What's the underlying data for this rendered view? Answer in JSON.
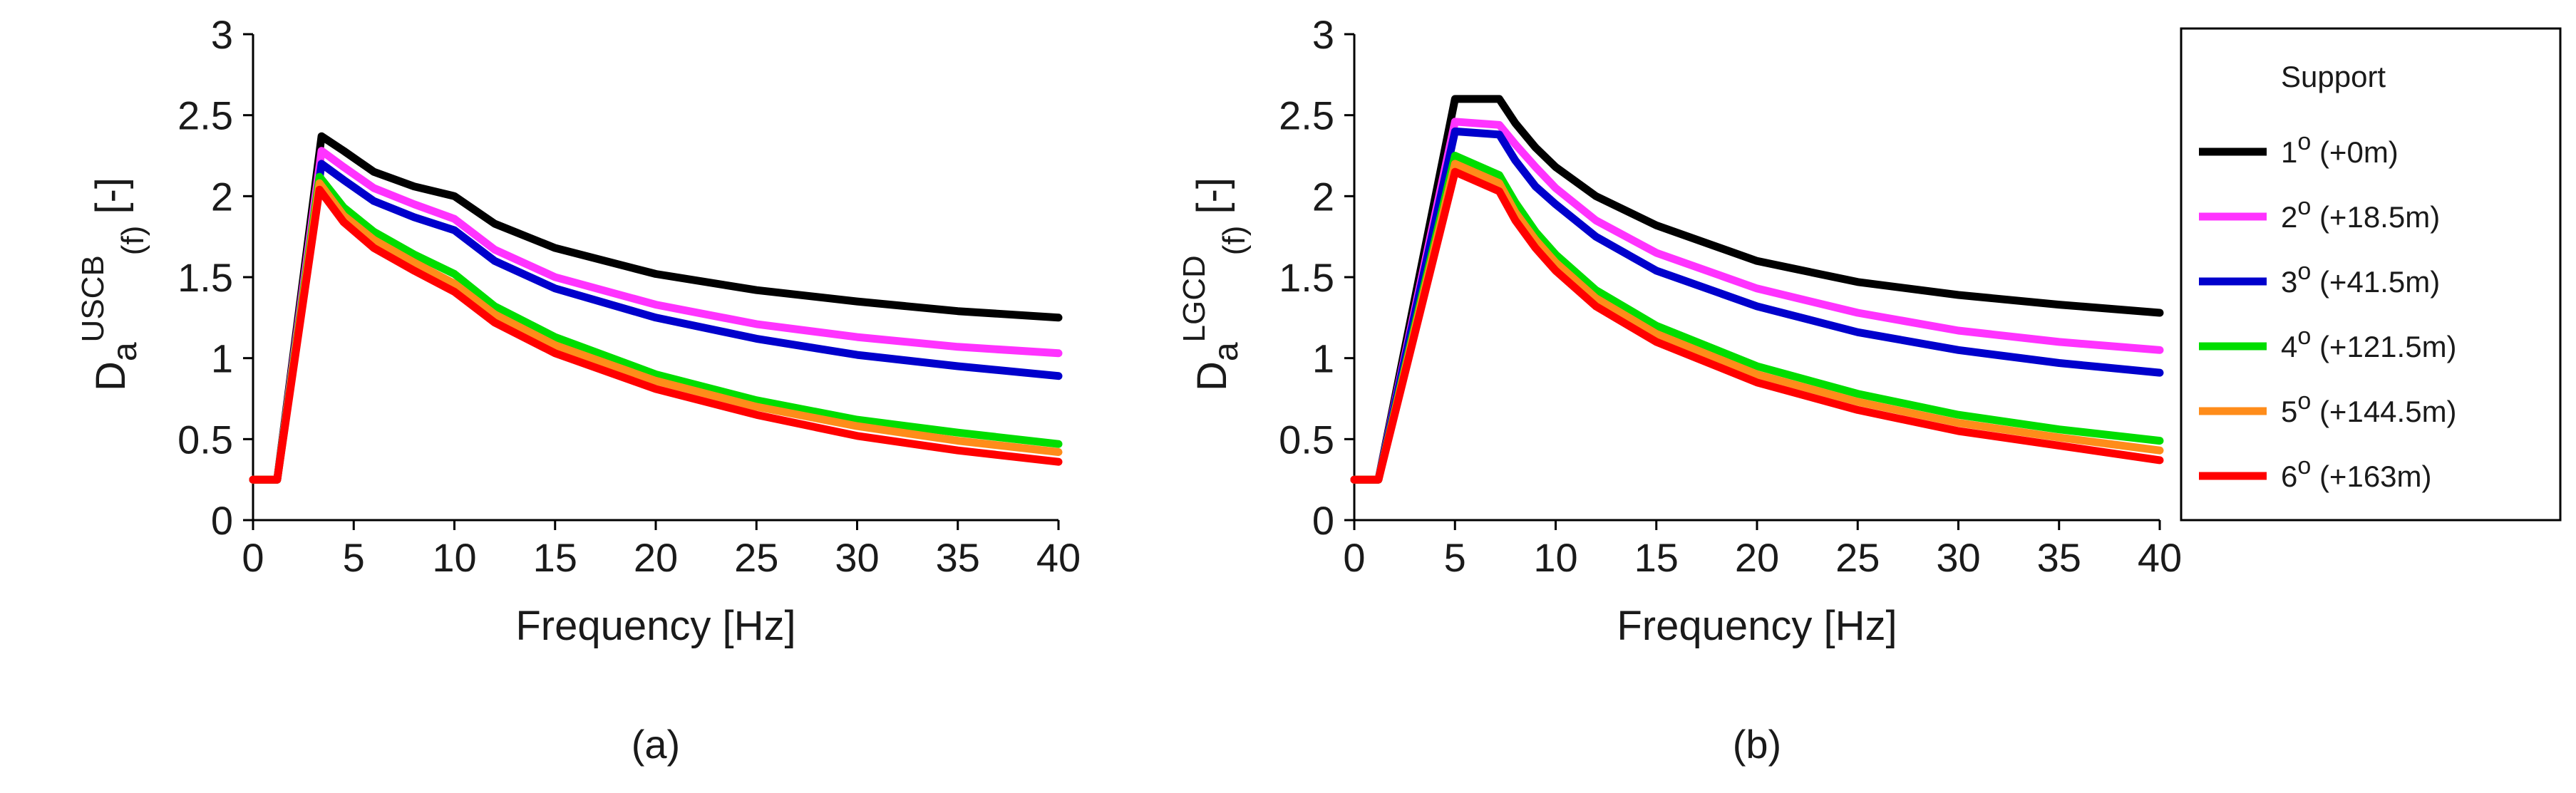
{
  "chart_data": [
    {
      "type": "line",
      "panel_label": "(a)",
      "ylabel_base": "D",
      "ylabel_sub": "a",
      "ylabel_sup": "USCB",
      "ylabel_sub2": "(f)",
      "ylabel_tail": " [-]",
      "xlabel": "Frequency [Hz]",
      "xlim": [
        0,
        40
      ],
      "ylim": [
        0,
        3
      ],
      "xticks": [
        "0",
        "5",
        "10",
        "15",
        "20",
        "25",
        "30",
        "35",
        "40"
      ],
      "yticks": [
        "0",
        "0.5",
        "1",
        "1.5",
        "2",
        "2.5",
        "3"
      ],
      "series": [
        {
          "name": "1° (+0m)",
          "color": "#000000",
          "points": [
            [
              0,
              0.25
            ],
            [
              1.2,
              0.25
            ],
            [
              3.4,
              2.37
            ],
            [
              4.5,
              2.28
            ],
            [
              6,
              2.15
            ],
            [
              8,
              2.06
            ],
            [
              10,
              2.0
            ],
            [
              12,
              1.83
            ],
            [
              15,
              1.68
            ],
            [
              20,
              1.52
            ],
            [
              25,
              1.42
            ],
            [
              30,
              1.35
            ],
            [
              35,
              1.29
            ],
            [
              40,
              1.25
            ]
          ]
        },
        {
          "name": "2° (+18.5m)",
          "color": "#ff33ff",
          "points": [
            [
              0,
              0.25
            ],
            [
              1.2,
              0.25
            ],
            [
              3.4,
              2.28
            ],
            [
              4.5,
              2.18
            ],
            [
              6,
              2.05
            ],
            [
              8,
              1.95
            ],
            [
              10,
              1.86
            ],
            [
              12,
              1.67
            ],
            [
              15,
              1.5
            ],
            [
              20,
              1.33
            ],
            [
              25,
              1.21
            ],
            [
              30,
              1.13
            ],
            [
              35,
              1.07
            ],
            [
              40,
              1.03
            ]
          ]
        },
        {
          "name": "3° (+41.5m)",
          "color": "#0000cc",
          "points": [
            [
              0,
              0.25
            ],
            [
              1.2,
              0.25
            ],
            [
              3.4,
              2.2
            ],
            [
              4.5,
              2.1
            ],
            [
              6,
              1.97
            ],
            [
              8,
              1.87
            ],
            [
              10,
              1.79
            ],
            [
              12,
              1.6
            ],
            [
              15,
              1.43
            ],
            [
              20,
              1.25
            ],
            [
              25,
              1.12
            ],
            [
              30,
              1.02
            ],
            [
              35,
              0.95
            ],
            [
              40,
              0.89
            ]
          ]
        },
        {
          "name": "4° (+121.5m)",
          "color": "#00dd00",
          "points": [
            [
              0,
              0.25
            ],
            [
              1.2,
              0.25
            ],
            [
              3.3,
              2.12
            ],
            [
              4.5,
              1.93
            ],
            [
              6,
              1.78
            ],
            [
              8,
              1.64
            ],
            [
              10,
              1.52
            ],
            [
              12,
              1.32
            ],
            [
              15,
              1.13
            ],
            [
              20,
              0.9
            ],
            [
              25,
              0.74
            ],
            [
              30,
              0.62
            ],
            [
              35,
              0.54
            ],
            [
              40,
              0.47
            ]
          ]
        },
        {
          "name": "5° (+144.5m)",
          "color": "#ff8c1a",
          "points": [
            [
              0,
              0.25
            ],
            [
              1.2,
              0.25
            ],
            [
              3.3,
              2.08
            ],
            [
              4.5,
              1.88
            ],
            [
              6,
              1.73
            ],
            [
              8,
              1.59
            ],
            [
              10,
              1.46
            ],
            [
              12,
              1.27
            ],
            [
              15,
              1.08
            ],
            [
              20,
              0.86
            ],
            [
              25,
              0.7
            ],
            [
              30,
              0.58
            ],
            [
              35,
              0.49
            ],
            [
              40,
              0.42
            ]
          ]
        },
        {
          "name": "6° (+163m)",
          "color": "#ff0000",
          "points": [
            [
              0,
              0.25
            ],
            [
              1.2,
              0.25
            ],
            [
              3.3,
              2.04
            ],
            [
              4.5,
              1.84
            ],
            [
              6,
              1.68
            ],
            [
              8,
              1.54
            ],
            [
              10,
              1.41
            ],
            [
              12,
              1.22
            ],
            [
              15,
              1.03
            ],
            [
              20,
              0.81
            ],
            [
              25,
              0.65
            ],
            [
              30,
              0.52
            ],
            [
              35,
              0.43
            ],
            [
              40,
              0.36
            ]
          ]
        }
      ]
    },
    {
      "type": "line",
      "panel_label": "(b)",
      "ylabel_base": "D",
      "ylabel_sub": "a",
      "ylabel_sup": "LGCD",
      "ylabel_sub2": "(f)",
      "ylabel_tail": " [-]",
      "xlabel": "Frequency [Hz]",
      "xlim": [
        0,
        40
      ],
      "ylim": [
        0,
        3
      ],
      "xticks": [
        "0",
        "5",
        "10",
        "15",
        "20",
        "25",
        "30",
        "35",
        "40"
      ],
      "yticks": [
        "0",
        "0.5",
        "1",
        "1.5",
        "2",
        "2.5",
        "3"
      ],
      "series": [
        {
          "name": "1° (+0m)",
          "color": "#000000",
          "points": [
            [
              0,
              0.25
            ],
            [
              1.2,
              0.25
            ],
            [
              5,
              2.6
            ],
            [
              7.2,
              2.6
            ],
            [
              8,
              2.45
            ],
            [
              9,
              2.3
            ],
            [
              10,
              2.18
            ],
            [
              12,
              2.0
            ],
            [
              15,
              1.82
            ],
            [
              20,
              1.6
            ],
            [
              25,
              1.47
            ],
            [
              30,
              1.39
            ],
            [
              35,
              1.33
            ],
            [
              40,
              1.28
            ]
          ]
        },
        {
          "name": "2° (+18.5m)",
          "color": "#ff33ff",
          "points": [
            [
              0,
              0.25
            ],
            [
              1.2,
              0.25
            ],
            [
              5,
              2.46
            ],
            [
              7.2,
              2.44
            ],
            [
              8,
              2.32
            ],
            [
              9,
              2.18
            ],
            [
              10,
              2.05
            ],
            [
              12,
              1.85
            ],
            [
              15,
              1.65
            ],
            [
              20,
              1.43
            ],
            [
              25,
              1.28
            ],
            [
              30,
              1.17
            ],
            [
              35,
              1.1
            ],
            [
              40,
              1.05
            ]
          ]
        },
        {
          "name": "3° (+41.5m)",
          "color": "#0000cc",
          "points": [
            [
              0,
              0.25
            ],
            [
              1.2,
              0.25
            ],
            [
              5,
              2.4
            ],
            [
              7.2,
              2.38
            ],
            [
              8,
              2.22
            ],
            [
              9,
              2.06
            ],
            [
              10,
              1.95
            ],
            [
              12,
              1.75
            ],
            [
              15,
              1.54
            ],
            [
              20,
              1.32
            ],
            [
              25,
              1.16
            ],
            [
              30,
              1.05
            ],
            [
              35,
              0.97
            ],
            [
              40,
              0.91
            ]
          ]
        },
        {
          "name": "4° (+121.5m)",
          "color": "#00dd00",
          "points": [
            [
              0,
              0.25
            ],
            [
              1.2,
              0.25
            ],
            [
              5,
              2.25
            ],
            [
              7.2,
              2.13
            ],
            [
              8,
              1.96
            ],
            [
              9,
              1.78
            ],
            [
              10,
              1.64
            ],
            [
              12,
              1.42
            ],
            [
              15,
              1.2
            ],
            [
              20,
              0.95
            ],
            [
              25,
              0.78
            ],
            [
              30,
              0.65
            ],
            [
              35,
              0.56
            ],
            [
              40,
              0.49
            ]
          ]
        },
        {
          "name": "5° (+144.5m)",
          "color": "#ff8c1a",
          "points": [
            [
              0,
              0.25
            ],
            [
              1.2,
              0.25
            ],
            [
              5,
              2.2
            ],
            [
              7.2,
              2.08
            ],
            [
              8,
              1.9
            ],
            [
              9,
              1.73
            ],
            [
              10,
              1.59
            ],
            [
              12,
              1.37
            ],
            [
              15,
              1.15
            ],
            [
              20,
              0.9
            ],
            [
              25,
              0.73
            ],
            [
              30,
              0.6
            ],
            [
              35,
              0.51
            ],
            [
              40,
              0.43
            ]
          ]
        },
        {
          "name": "6° (+163m)",
          "color": "#ff0000",
          "points": [
            [
              0,
              0.25
            ],
            [
              1.2,
              0.25
            ],
            [
              5,
              2.15
            ],
            [
              7.2,
              2.03
            ],
            [
              8,
              1.85
            ],
            [
              9,
              1.68
            ],
            [
              10,
              1.54
            ],
            [
              12,
              1.32
            ],
            [
              15,
              1.1
            ],
            [
              20,
              0.85
            ],
            [
              25,
              0.68
            ],
            [
              30,
              0.55
            ],
            [
              35,
              0.46
            ],
            [
              40,
              0.37
            ]
          ]
        }
      ]
    }
  ],
  "legend": {
    "title": "Support",
    "entries": [
      {
        "label": "1° (+0m)",
        "num": "1",
        "sup": "o",
        "rest": " (+0m)",
        "color": "#000000"
      },
      {
        "label": "2° (+18.5m)",
        "num": "2",
        "sup": "o",
        "rest": " (+18.5m)",
        "color": "#ff33ff"
      },
      {
        "label": "3° (+41.5m)",
        "num": "3",
        "sup": "o",
        "rest": " (+41.5m)",
        "color": "#0000cc"
      },
      {
        "label": "4° (+121.5m)",
        "num": "4",
        "sup": "o",
        "rest": " (+121.5m)",
        "color": "#00dd00"
      },
      {
        "label": "5° (+144.5m)",
        "num": "5",
        "sup": "o",
        "rest": " (+144.5m)",
        "color": "#ff8c1a"
      },
      {
        "label": "6° (+163m)",
        "num": "6",
        "sup": "o",
        "rest": " (+163m)",
        "color": "#ff0000"
      }
    ]
  }
}
